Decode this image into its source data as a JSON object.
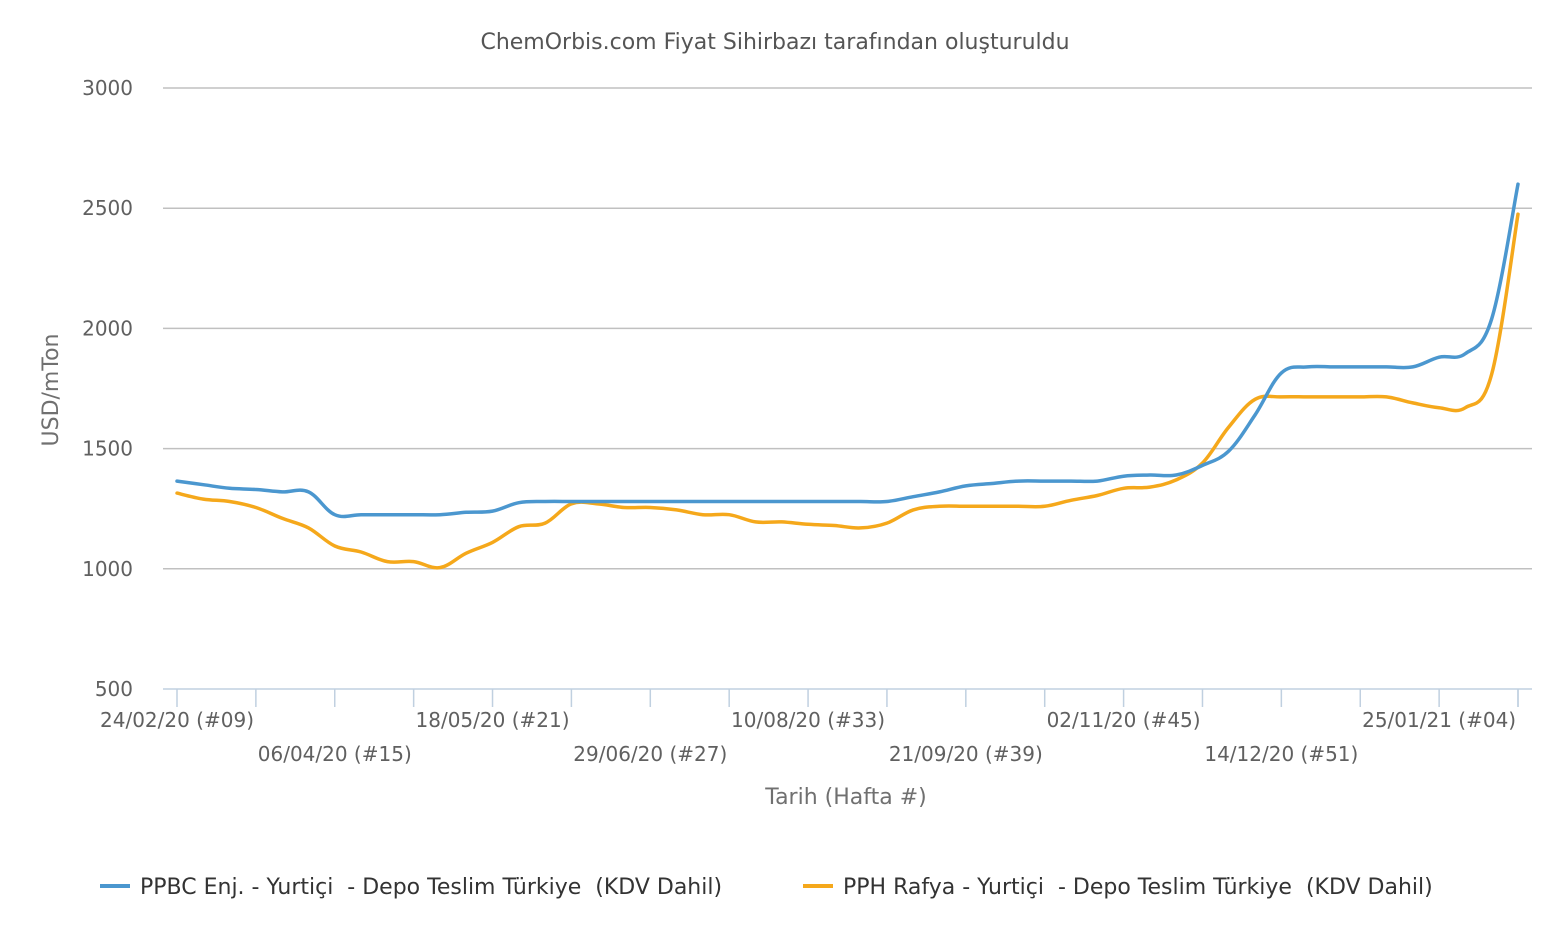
{
  "chart_data": {
    "type": "line",
    "title": "ChemOrbis.com Fiyat Sihirbazı tarafından oluşturuldu",
    "xlabel": "Tarih (Hafta #)",
    "ylabel": "USD/mTon",
    "ylim": [
      500,
      3000
    ],
    "yticks": [
      "500",
      "1000",
      "1500",
      "2000",
      "2500",
      "3000"
    ],
    "grid": true,
    "legend_position": "bottom",
    "x_tick_labels": [
      {
        "week_index": 0,
        "label": "24/02/20 (#09)",
        "row": 0
      },
      {
        "week_index": 6,
        "label": "06/04/20 (#15)",
        "row": 1
      },
      {
        "week_index": 12,
        "label": "18/05/20 (#21)",
        "row": 0
      },
      {
        "week_index": 18,
        "label": "29/06/20 (#27)",
        "row": 1
      },
      {
        "week_index": 24,
        "label": "10/08/20 (#33)",
        "row": 0
      },
      {
        "week_index": 30,
        "label": "21/09/20 (#39)",
        "row": 1
      },
      {
        "week_index": 36,
        "label": "02/11/20 (#45)",
        "row": 0
      },
      {
        "week_index": 42,
        "label": "14/12/20 (#51)",
        "row": 1
      },
      {
        "week_index": 48,
        "label": "25/01/21 (#04)",
        "row": 0
      }
    ],
    "week_count": 52,
    "series": [
      {
        "name": "PPBC Enj. - Yurtiçi  - Depo Teslim Türkiye  (KDV Dahil)",
        "color": "#4b97cf",
        "values": [
          [
            0,
            1365
          ],
          [
            1,
            1350
          ],
          [
            2,
            1335
          ],
          [
            3,
            1330
          ],
          [
            4,
            1320
          ],
          [
            5,
            1320
          ],
          [
            6,
            1225
          ],
          [
            7,
            1225
          ],
          [
            8,
            1225
          ],
          [
            9,
            1225
          ],
          [
            10,
            1225
          ],
          [
            11,
            1235
          ],
          [
            12,
            1240
          ],
          [
            13,
            1275
          ],
          [
            14,
            1280
          ],
          [
            15,
            1280
          ],
          [
            16,
            1280
          ],
          [
            17,
            1280
          ],
          [
            18,
            1280
          ],
          [
            19,
            1280
          ],
          [
            20,
            1280
          ],
          [
            21,
            1280
          ],
          [
            22,
            1280
          ],
          [
            23,
            1280
          ],
          [
            24,
            1280
          ],
          [
            25,
            1280
          ],
          [
            26,
            1280
          ],
          [
            27,
            1280
          ],
          [
            28,
            1300
          ],
          [
            29,
            1320
          ],
          [
            30,
            1345
          ],
          [
            31,
            1355
          ],
          [
            32,
            1365
          ],
          [
            33,
            1365
          ],
          [
            34,
            1365
          ],
          [
            35,
            1365
          ],
          [
            36,
            1385
          ],
          [
            37,
            1390
          ],
          [
            38,
            1390
          ],
          [
            39,
            1430
          ],
          [
            40,
            1490
          ],
          [
            41,
            1640
          ],
          [
            42,
            1815
          ],
          [
            43,
            1840
          ],
          [
            44,
            1840
          ],
          [
            45,
            1840
          ],
          [
            46,
            1840
          ],
          [
            47,
            1840
          ],
          [
            48,
            1880
          ],
          [
            49,
            1895
          ],
          [
            50,
            2040
          ],
          [
            51,
            2600
          ]
        ]
      },
      {
        "name": "PPH Rafya - Yurtiçi  - Depo Teslim Türkiye  (KDV Dahil)",
        "color": "#f5a81b",
        "values": [
          [
            0,
            1315
          ],
          [
            1,
            1290
          ],
          [
            2,
            1280
          ],
          [
            3,
            1255
          ],
          [
            4,
            1210
          ],
          [
            5,
            1170
          ],
          [
            6,
            1095
          ],
          [
            7,
            1070
          ],
          [
            8,
            1030
          ],
          [
            9,
            1030
          ],
          [
            10,
            1005
          ],
          [
            11,
            1065
          ],
          [
            12,
            1110
          ],
          [
            13,
            1175
          ],
          [
            14,
            1190
          ],
          [
            15,
            1270
          ],
          [
            16,
            1270
          ],
          [
            17,
            1255
          ],
          [
            18,
            1255
          ],
          [
            19,
            1245
          ],
          [
            20,
            1225
          ],
          [
            21,
            1225
          ],
          [
            22,
            1195
          ],
          [
            23,
            1195
          ],
          [
            24,
            1185
          ],
          [
            25,
            1180
          ],
          [
            26,
            1170
          ],
          [
            27,
            1190
          ],
          [
            28,
            1245
          ],
          [
            29,
            1260
          ],
          [
            30,
            1260
          ],
          [
            31,
            1260
          ],
          [
            32,
            1260
          ],
          [
            33,
            1260
          ],
          [
            34,
            1285
          ],
          [
            35,
            1305
          ],
          [
            36,
            1335
          ],
          [
            37,
            1340
          ],
          [
            38,
            1370
          ],
          [
            39,
            1440
          ],
          [
            40,
            1590
          ],
          [
            41,
            1705
          ],
          [
            42,
            1715
          ],
          [
            43,
            1715
          ],
          [
            44,
            1715
          ],
          [
            45,
            1715
          ],
          [
            46,
            1715
          ],
          [
            47,
            1690
          ],
          [
            48,
            1670
          ],
          [
            49,
            1670
          ],
          [
            50,
            1810
          ],
          [
            51,
            2475
          ]
        ]
      }
    ]
  }
}
